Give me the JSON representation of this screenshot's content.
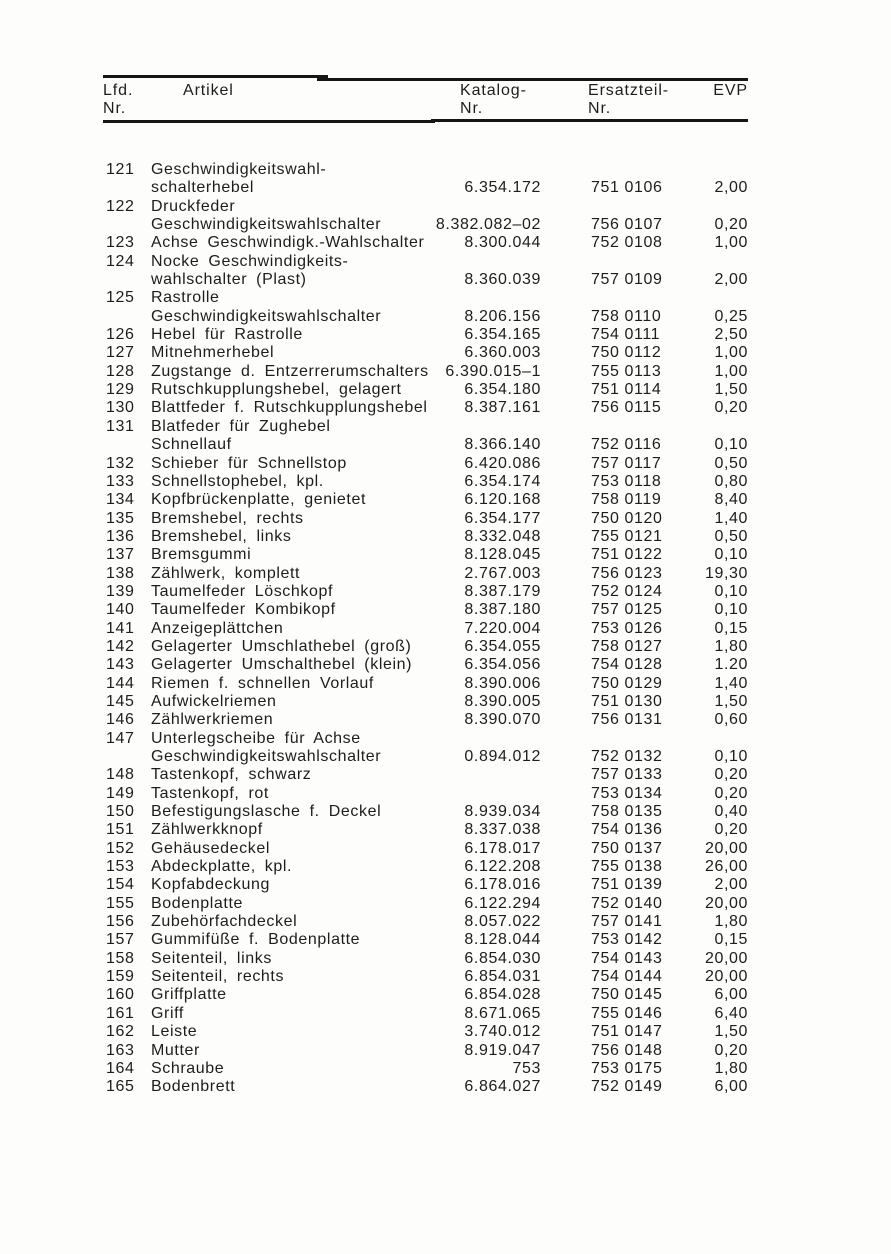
{
  "table": {
    "header": {
      "col_lfd_line1": "Lfd.",
      "col_lfd_line2": "Nr.",
      "col_artikel": "Artikel",
      "col_katalog_line1": "Katalog-",
      "col_katalog_line2": "Nr.",
      "col_ersatzteil_line1": "Ersatzteil-",
      "col_ersatzteil_line2": "Nr.",
      "col_evp": "EVP"
    },
    "colors": {
      "text": "#1d1d1d",
      "rule": "#161616",
      "paper": "#fdfdfb"
    },
    "rows": [
      {
        "nr": "121",
        "article": [
          "Geschwindigkeitswahl-",
          "schalterhebel"
        ],
        "katalog": "6.354.172",
        "ersatzteil": "751 0106",
        "evp": "2,00"
      },
      {
        "nr": "122",
        "article": [
          "Druckfeder",
          "Geschwindigkeitswahlschalter"
        ],
        "katalog": "8.382.082–02",
        "ersatzteil": "756 0107",
        "evp": "0,20"
      },
      {
        "nr": "123",
        "article": [
          "Achse Geschwindigk.-Wahlschalter"
        ],
        "katalog": "8.300.044",
        "ersatzteil": "752 0108",
        "evp": "1,00"
      },
      {
        "nr": "124",
        "article": [
          "Nocke Geschwindigkeits-",
          "wahlschalter (Plast)"
        ],
        "katalog": "8.360.039",
        "ersatzteil": "757 0109",
        "evp": "2,00"
      },
      {
        "nr": "125",
        "article": [
          "Rastrolle",
          "Geschwindigkeitswahlschalter"
        ],
        "katalog": "8.206.156",
        "ersatzteil": "758 0110",
        "evp": "0,25"
      },
      {
        "nr": "126",
        "article": [
          "Hebel für Rastrolle"
        ],
        "katalog": "6.354.165",
        "ersatzteil": "754 0111",
        "evp": "2,50"
      },
      {
        "nr": "127",
        "article": [
          "Mitnehmerhebel"
        ],
        "katalog": "6.360.003",
        "ersatzteil": "750 0112",
        "evp": "1,00"
      },
      {
        "nr": "128",
        "article": [
          "Zugstange d. Entzerrerumschalters"
        ],
        "katalog": "6.390.015–1",
        "ersatzteil": "755 0113",
        "evp": "1,00"
      },
      {
        "nr": "129",
        "article": [
          "Rutschkupplungshebel, gelagert"
        ],
        "katalog": "6.354.180",
        "ersatzteil": "751 0114",
        "evp": "1,50"
      },
      {
        "nr": "130",
        "article": [
          "Blattfeder f. Rutschkupplungshebel"
        ],
        "katalog": "8.387.161",
        "ersatzteil": "756 0115",
        "evp": "0,20"
      },
      {
        "nr": "131",
        "article": [
          "Blatfeder für Zughebel",
          "Schnellauf"
        ],
        "katalog": "8.366.140",
        "ersatzteil": "752 0116",
        "evp": "0,10"
      },
      {
        "nr": "132",
        "article": [
          "Schieber für Schnellstop"
        ],
        "katalog": "6.420.086",
        "ersatzteil": "757 0117",
        "evp": "0,50"
      },
      {
        "nr": "133",
        "article": [
          "Schnellstophebel, kpl."
        ],
        "katalog": "6.354.174",
        "ersatzteil": "753 0118",
        "evp": "0,80"
      },
      {
        "nr": "134",
        "article": [
          "Kopfbrückenplatte, genietet"
        ],
        "katalog": "6.120.168",
        "ersatzteil": "758 0119",
        "evp": "8,40"
      },
      {
        "nr": "135",
        "article": [
          "Bremshebel, rechts"
        ],
        "katalog": "6.354.177",
        "ersatzteil": "750 0120",
        "evp": "1,40"
      },
      {
        "nr": "136",
        "article": [
          "Bremshebel, links"
        ],
        "katalog": "8.332.048",
        "ersatzteil": "755 0121",
        "evp": "0,50"
      },
      {
        "nr": "137",
        "article": [
          "Bremsgummi"
        ],
        "katalog": "8.128.045",
        "ersatzteil": "751 0122",
        "evp": "0,10"
      },
      {
        "nr": "138",
        "article": [
          "Zählwerk, komplett"
        ],
        "katalog": "2.767.003",
        "ersatzteil": "756 0123",
        "evp": "19,30"
      },
      {
        "nr": "139",
        "article": [
          "Taumelfeder Löschkopf"
        ],
        "katalog": "8.387.179",
        "ersatzteil": "752 0124",
        "evp": "0,10"
      },
      {
        "nr": "140",
        "article": [
          "Taumelfeder Kombikopf"
        ],
        "katalog": "8.387.180",
        "ersatzteil": "757 0125",
        "evp": "0,10"
      },
      {
        "nr": "141",
        "article": [
          "Anzeigeplättchen"
        ],
        "katalog": "7.220.004",
        "ersatzteil": "753 0126",
        "evp": "0,15"
      },
      {
        "nr": "142",
        "article": [
          "Gelagerter Umschlathebel (groß)"
        ],
        "katalog": "6.354.055",
        "ersatzteil": "758 0127",
        "evp": "1,80"
      },
      {
        "nr": "143",
        "article": [
          "Gelagerter Umschalthebel (klein)"
        ],
        "katalog": "6.354.056",
        "ersatzteil": "754 0128",
        "evp": "1.20"
      },
      {
        "nr": "144",
        "article": [
          "Riemen f. schnellen Vorlauf"
        ],
        "katalog": "8.390.006",
        "ersatzteil": "750 0129",
        "evp": "1,40"
      },
      {
        "nr": "145",
        "article": [
          "Aufwickelriemen"
        ],
        "katalog": "8.390.005",
        "ersatzteil": "751 0130",
        "evp": "1,50"
      },
      {
        "nr": "146",
        "article": [
          "Zählwerkriemen"
        ],
        "katalog": "8.390.070",
        "ersatzteil": "756 0131",
        "evp": "0,60"
      },
      {
        "nr": "147",
        "article": [
          "Unterlegscheibe für Achse",
          "Geschwindigkeitswahlschalter"
        ],
        "katalog": "0.894.012",
        "ersatzteil": "752 0132",
        "evp": "0,10"
      },
      {
        "nr": "148",
        "article": [
          "Tastenkopf, schwarz"
        ],
        "katalog": "",
        "ersatzteil": "757 0133",
        "evp": "0,20"
      },
      {
        "nr": "149",
        "article": [
          "Tastenkopf, rot"
        ],
        "katalog": "",
        "ersatzteil": "753 0134",
        "evp": "0,20"
      },
      {
        "nr": "150",
        "article": [
          "Befestigungslasche f. Deckel"
        ],
        "katalog": "8.939.034",
        "ersatzteil": "758 0135",
        "evp": "0,40"
      },
      {
        "nr": "151",
        "article": [
          "Zählwerkknopf"
        ],
        "katalog": "8.337.038",
        "ersatzteil": "754 0136",
        "evp": "0,20"
      },
      {
        "nr": "152",
        "article": [
          "Gehäusedeckel"
        ],
        "katalog": "6.178.017",
        "ersatzteil": "750 0137",
        "evp": "20,00"
      },
      {
        "nr": "153",
        "article": [
          "Abdeckplatte, kpl."
        ],
        "katalog": "6.122.208",
        "ersatzteil": "755 0138",
        "evp": "26,00"
      },
      {
        "nr": "154",
        "article": [
          "Kopfabdeckung"
        ],
        "katalog": "6.178.016",
        "ersatzteil": "751 0139",
        "evp": "2,00"
      },
      {
        "nr": "155",
        "article": [
          "Bodenplatte"
        ],
        "katalog": "6.122.294",
        "ersatzteil": "752 0140",
        "evp": "20,00"
      },
      {
        "nr": "156",
        "article": [
          "Zubehörfachdeckel"
        ],
        "katalog": "8.057.022",
        "ersatzteil": "757 0141",
        "evp": "1,80"
      },
      {
        "nr": "157",
        "article": [
          "Gummifüße f. Bodenplatte"
        ],
        "katalog": "8.128.044",
        "ersatzteil": "753 0142",
        "evp": "0,15"
      },
      {
        "nr": "158",
        "article": [
          "Seitenteil, links"
        ],
        "katalog": "6.854.030",
        "ersatzteil": "754 0143",
        "evp": "20,00"
      },
      {
        "nr": "159",
        "article": [
          "Seitenteil, rechts"
        ],
        "katalog": "6.854.031",
        "ersatzteil": "754 0144",
        "evp": "20,00"
      },
      {
        "nr": "160",
        "article": [
          "Griffplatte"
        ],
        "katalog": "6.854.028",
        "ersatzteil": "750 0145",
        "evp": "6,00"
      },
      {
        "nr": "161",
        "article": [
          "Griff"
        ],
        "katalog": "8.671.065",
        "ersatzteil": "755 0146",
        "evp": "6,40"
      },
      {
        "nr": "162",
        "article": [
          "Leiste"
        ],
        "katalog": "3.740.012",
        "ersatzteil": "751 0147",
        "evp": "1,50"
      },
      {
        "nr": "163",
        "article": [
          "Mutter"
        ],
        "katalog": "8.919.047",
        "ersatzteil": "756 0148",
        "evp": "0,20"
      },
      {
        "nr": "164",
        "article": [
          "Schraube"
        ],
        "katalog": "753",
        "ersatzteil": "753 0175",
        "evp": "1,80"
      },
      {
        "nr": "165",
        "article": [
          "Bodenbrett"
        ],
        "katalog": "6.864.027",
        "ersatzteil": "752 0149",
        "evp": "6,00"
      }
    ]
  }
}
